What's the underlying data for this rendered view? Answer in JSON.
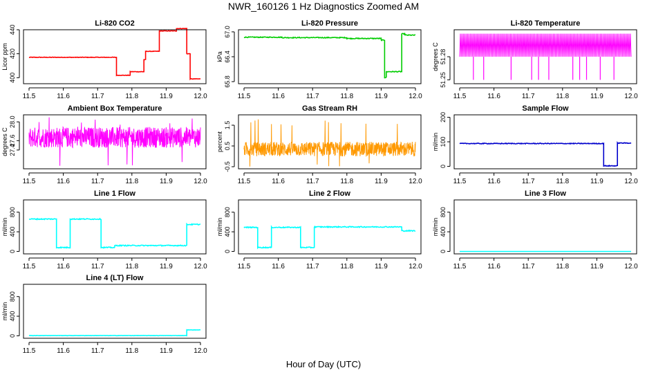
{
  "page": {
    "title": "NWR_160126  1 Hz Diagnostics Zoomed AM",
    "xlabel": "Hour of Day (UTC)"
  },
  "chart_data": [
    {
      "type": "line",
      "title": "Li-820 CO2",
      "ylabel": "Licor ppm",
      "color": "#ff0000",
      "xlim": [
        11.5,
        12.0
      ],
      "ylim": [
        395,
        440
      ],
      "yticks": [
        {
          "v": 400,
          "label": "400"
        },
        {
          "v": 420,
          "label": "420"
        },
        {
          "v": 440,
          "label": "440"
        }
      ],
      "noise": 0.2,
      "segments": [
        [
          11.5,
          11.755,
          417
        ],
        [
          11.755,
          11.795,
          402
        ],
        [
          11.795,
          11.835,
          405
        ],
        [
          11.835,
          11.84,
          415
        ],
        [
          11.84,
          11.88,
          422
        ],
        [
          11.88,
          11.93,
          439
        ],
        [
          11.93,
          11.96,
          441
        ],
        [
          11.96,
          11.97,
          420
        ],
        [
          11.97,
          12.0,
          399
        ]
      ]
    },
    {
      "type": "line",
      "title": "Li-820 Pressure",
      "ylabel": "kPa",
      "color": "#00cc00",
      "xlim": [
        11.5,
        12.0
      ],
      "ylim": [
        65.75,
        67.05
      ],
      "yticks": [
        {
          "v": 65.8,
          "label": "65.8"
        },
        {
          "v": 66.4,
          "label": "66.4"
        },
        {
          "v": 67.0,
          "label": "67.0"
        }
      ],
      "noise": 0.01,
      "segments": [
        [
          11.5,
          11.61,
          66.87
        ],
        [
          11.61,
          11.8,
          66.86
        ],
        [
          11.8,
          11.9,
          66.84
        ],
        [
          11.9,
          11.91,
          66.8
        ],
        [
          11.91,
          11.915,
          65.9
        ],
        [
          11.915,
          11.96,
          66.04
        ],
        [
          11.96,
          11.97,
          66.95
        ],
        [
          11.97,
          12.0,
          66.92
        ]
      ]
    },
    {
      "type": "line",
      "title": "Li-820 Temperature",
      "ylabel": "degrees C",
      "color": "#ff00ff",
      "xlim": [
        11.5,
        12.0
      ],
      "ylim": [
        51.245,
        51.315
      ],
      "yticks": [
        {
          "v": 51.25,
          "label": "51.25"
        },
        {
          "v": 51.28,
          "label": "51.28"
        }
      ],
      "pattern": "square",
      "levels": [
        51.28,
        51.31
      ],
      "dips": [
        11.54,
        11.57,
        11.65,
        11.71,
        11.73,
        11.76,
        11.83,
        11.85,
        11.87,
        11.91,
        11.95
      ],
      "dip_value": 51.25
    },
    {
      "type": "line",
      "title": "Ambient Box Temperature",
      "ylabel": "degrees C",
      "color": "#ff00ff",
      "xlim": [
        11.5,
        12.0
      ],
      "ylim": [
        27.0,
        28.15
      ],
      "yticks": [
        {
          "v": 27.4,
          "label": "27.4"
        },
        {
          "v": 27.6,
          "label": "27.6"
        },
        {
          "v": 28.0,
          "label": "28.0"
        }
      ],
      "pattern": "noise",
      "mean": 27.67,
      "amplitude": 0.22,
      "extremes": [
        27.05,
        28.1
      ]
    },
    {
      "type": "line",
      "title": "Gas Stream RH",
      "ylabel": "percent",
      "color": "#ff9900",
      "xlim": [
        11.5,
        12.0
      ],
      "ylim": [
        -0.6,
        2.0
      ],
      "yticks": [
        {
          "v": -0.5,
          "label": "-0.5"
        },
        {
          "v": 0.5,
          "label": "0.5"
        },
        {
          "v": 1.5,
          "label": "1.5"
        }
      ],
      "pattern": "noise",
      "mean": 0.35,
      "amplitude": 0.35,
      "extremes": [
        -0.5,
        1.8
      ]
    },
    {
      "type": "line",
      "title": "Sample Flow",
      "ylabel": "ml/min",
      "color": "#0000cc",
      "xlim": [
        11.5,
        12.0
      ],
      "ylim": [
        -10,
        210
      ],
      "yticks": [
        {
          "v": 0,
          "label": "0"
        },
        {
          "v": 100,
          "label": "100"
        },
        {
          "v": 200,
          "label": "200"
        }
      ],
      "noise": 1.5,
      "segments": [
        [
          11.5,
          11.92,
          93
        ],
        [
          11.92,
          11.96,
          2
        ],
        [
          11.96,
          12.0,
          95
        ]
      ]
    },
    {
      "type": "line",
      "title": "Line 1 Flow",
      "ylabel": "ml/min",
      "color": "#00ffff",
      "xlim": [
        11.5,
        12.0
      ],
      "ylim": [
        -50,
        1050
      ],
      "yticks": [
        {
          "v": 0,
          "label": "0"
        },
        {
          "v": 400,
          "label": "400"
        },
        {
          "v": 800,
          "label": "800"
        }
      ],
      "noise": 10,
      "segments": [
        [
          11.5,
          11.58,
          660
        ],
        [
          11.58,
          11.62,
          80
        ],
        [
          11.62,
          11.71,
          660
        ],
        [
          11.71,
          11.75,
          80
        ],
        [
          11.75,
          11.96,
          120
        ],
        [
          11.96,
          12.0,
          550
        ]
      ]
    },
    {
      "type": "line",
      "title": "Line 2 Flow",
      "ylabel": "ml/min",
      "color": "#00ffff",
      "xlim": [
        11.5,
        12.0
      ],
      "ylim": [
        -50,
        1050
      ],
      "yticks": [
        {
          "v": 0,
          "label": "0"
        },
        {
          "v": 400,
          "label": "400"
        },
        {
          "v": 800,
          "label": "800"
        }
      ],
      "noise": 10,
      "segments": [
        [
          11.5,
          11.54,
          490
        ],
        [
          11.54,
          11.58,
          80
        ],
        [
          11.58,
          11.665,
          490
        ],
        [
          11.665,
          11.705,
          80
        ],
        [
          11.705,
          11.96,
          500
        ],
        [
          11.96,
          12.0,
          420
        ]
      ]
    },
    {
      "type": "line",
      "title": "Line 3 Flow",
      "ylabel": "ml/min",
      "color": "#00ffff",
      "xlim": [
        11.5,
        12.0
      ],
      "ylim": [
        -50,
        1050
      ],
      "yticks": [
        {
          "v": 0,
          "label": "0"
        },
        {
          "v": 400,
          "label": "400"
        },
        {
          "v": 800,
          "label": "800"
        }
      ],
      "noise": 0,
      "segments": [
        [
          11.5,
          12.0,
          0
        ]
      ]
    },
    {
      "type": "line",
      "title": "Line 4 (LT) Flow",
      "ylabel": "ml/min",
      "color": "#00ffff",
      "xlim": [
        11.5,
        12.0
      ],
      "ylim": [
        -50,
        1050
      ],
      "yticks": [
        {
          "v": 0,
          "label": "0"
        },
        {
          "v": 400,
          "label": "400"
        },
        {
          "v": 800,
          "label": "800"
        }
      ],
      "noise": 3,
      "segments": [
        [
          11.5,
          11.96,
          5
        ],
        [
          11.96,
          12.0,
          120
        ]
      ]
    }
  ],
  "xticks": [
    "11.5",
    "11.6",
    "11.7",
    "11.8",
    "11.9",
    "12.0"
  ]
}
